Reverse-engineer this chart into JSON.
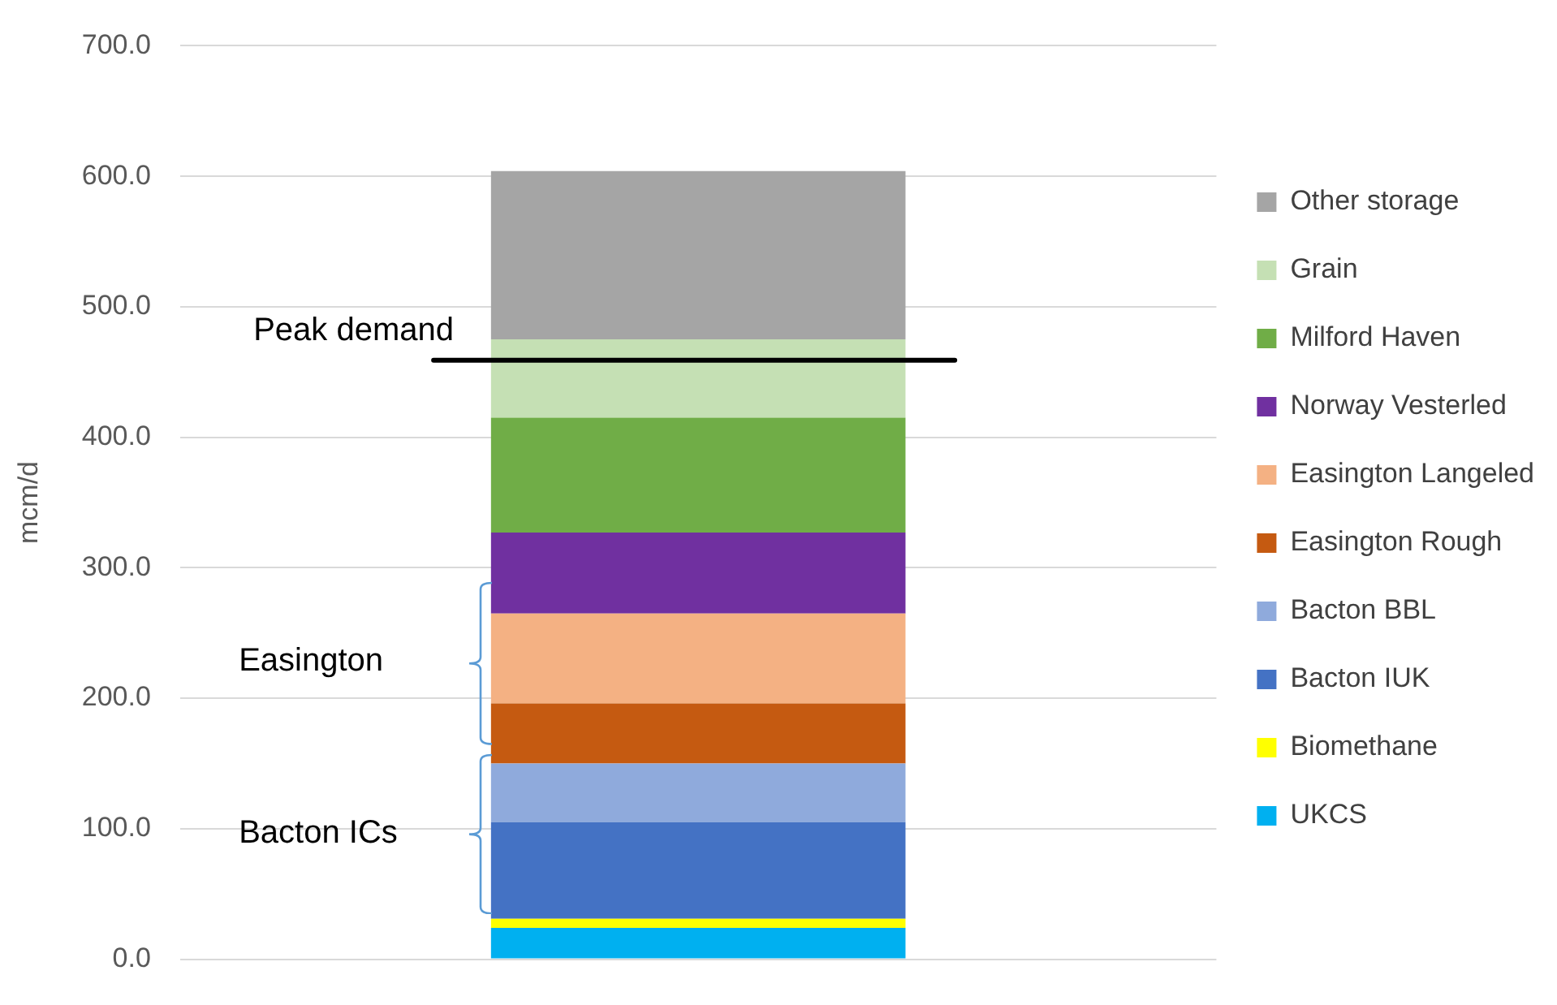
{
  "chart_data": {
    "type": "bar",
    "stacked": true,
    "categories": [
      null
    ],
    "ylabel": "mcm/d",
    "ylim": [
      0,
      700
    ],
    "yticks": [
      {
        "value": 0,
        "label": "0.0"
      },
      {
        "value": 100,
        "label": "100.0"
      },
      {
        "value": 200,
        "label": "200.0"
      },
      {
        "value": 300,
        "label": "300.0"
      },
      {
        "value": 400,
        "label": "400.0"
      },
      {
        "value": 500,
        "label": "500.0"
      },
      {
        "value": 600,
        "label": "600.0"
      },
      {
        "value": 700,
        "label": "700.0"
      }
    ],
    "grid": "y",
    "tick_labels": "y",
    "legend": "right",
    "series": [
      {
        "name": "UKCS",
        "color": "#00b0f0",
        "values": [
          24
        ]
      },
      {
        "name": "Biomethane",
        "color": "#ffff00",
        "values": [
          7
        ]
      },
      {
        "name": "Bacton IUK",
        "color": "#4472c4",
        "values": [
          74
        ]
      },
      {
        "name": "Bacton BBL",
        "color": "#8faadc",
        "values": [
          45
        ]
      },
      {
        "name": "Easington Rough",
        "color": "#c55a11",
        "values": [
          46
        ]
      },
      {
        "name": "Easington Langeled",
        "color": "#f4b183",
        "values": [
          69
        ]
      },
      {
        "name": "Norway Vesterled",
        "color": "#7030a0",
        "values": [
          62
        ]
      },
      {
        "name": "Milford Haven",
        "color": "#70ad47",
        "values": [
          88
        ]
      },
      {
        "name": "Grain",
        "color": "#c5e0b4",
        "values": [
          60
        ]
      },
      {
        "name": "Other storage",
        "color": "#a5a5a5",
        "values": [
          129
        ]
      }
    ],
    "ref_lines": [
      {
        "axis": "y",
        "value": 459,
        "label": "Peak demand",
        "color": "#000000"
      }
    ],
    "annotations": [
      "Easington",
      "Bacton ICs"
    ]
  }
}
